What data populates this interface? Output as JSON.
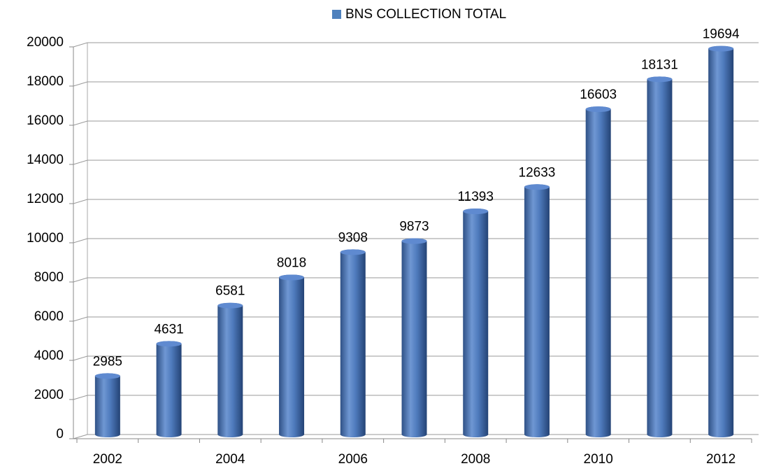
{
  "chart_data": {
    "type": "bar",
    "categories": [
      "2002",
      null,
      "2004",
      null,
      "2006",
      null,
      "2008",
      null,
      "2010",
      null,
      "2012"
    ],
    "series": [
      {
        "name": "BNS COLLECTION TOTAL",
        "color": "#4f81bd",
        "values": [
          2985,
          4631,
          6581,
          8018,
          9308,
          9873,
          11393,
          12633,
          16603,
          18131,
          19694
        ]
      }
    ],
    "ylim": [
      0,
      20000
    ],
    "yticks": [
      0,
      2000,
      4000,
      6000,
      8000,
      10000,
      12000,
      14000,
      16000,
      18000,
      20000
    ],
    "grid": true,
    "legend": "top"
  }
}
